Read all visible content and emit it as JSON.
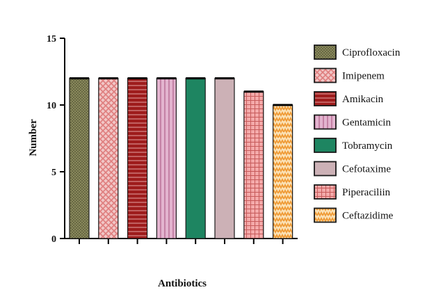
{
  "chart_data": {
    "type": "bar",
    "title": "",
    "xlabel": "Antibiotics",
    "ylabel": "Number",
    "ylim": [
      0,
      15
    ],
    "yticks": [
      0,
      5,
      10,
      15
    ],
    "grid": false,
    "legend_position": "right",
    "categories": [
      "Ciprofloxacin",
      "Imipenem",
      "Amikacin",
      "Gentamicin",
      "Tobramycin",
      "Cefotaxime",
      "Piperaciliin",
      "Ceftazidime"
    ],
    "values": [
      12,
      12,
      12,
      12,
      12,
      12,
      11,
      10
    ],
    "series_styles": [
      {
        "fill": "#5a5a3a",
        "pattern": "crosshatch-fine",
        "pattern_color": "#8d8d5e"
      },
      {
        "fill": "#f1c6c6",
        "pattern": "diamond-check",
        "pattern_color": "#df7d7d"
      },
      {
        "fill": "#9e1c1c",
        "pattern": "horizontal-lines",
        "pattern_color": "#e4a5a5"
      },
      {
        "fill": "#e3b4cf",
        "pattern": "vertical-lines",
        "pattern_color": "#b86b93"
      },
      {
        "fill": "#1e8561",
        "pattern": "solid",
        "pattern_color": "#1e8561"
      },
      {
        "fill": "#ccb1b6",
        "pattern": "solid",
        "pattern_color": "#ccb1b6"
      },
      {
        "fill": "#f4aaaa",
        "pattern": "grid",
        "pattern_color": "#c75b5b"
      },
      {
        "fill": "#fbe2b7",
        "pattern": "zigzag",
        "pattern_color": "#ef9a35"
      }
    ]
  }
}
